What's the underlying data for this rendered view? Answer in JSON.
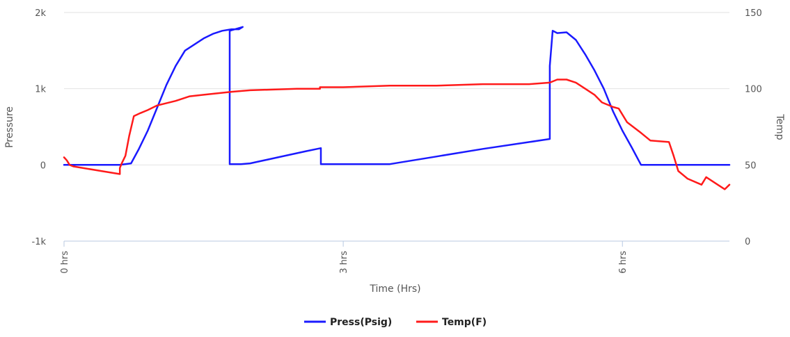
{
  "chart_data": {
    "type": "line",
    "title": "",
    "xlabel": "Time (Hrs)",
    "ylabel_left": "Pressure",
    "ylabel_right": "Temp",
    "xlim": [
      0,
      7.15
    ],
    "ylim_left": [
      -1000,
      2000
    ],
    "ylim_right": [
      0,
      150
    ],
    "x_ticks": [
      0,
      3,
      6
    ],
    "x_tick_labels": [
      "0 hrs",
      "3 hrs",
      "6 hrs"
    ],
    "y_left_ticks": [
      -1000,
      0,
      1000,
      2000
    ],
    "y_left_tick_labels": [
      "-1k",
      "0",
      "1k",
      "2k"
    ],
    "y_right_ticks": [
      0,
      50,
      100,
      150
    ],
    "y_right_tick_labels": [
      "0",
      "50",
      "100",
      "150"
    ],
    "grid": true,
    "legend_position": "bottom-center",
    "series": [
      {
        "name": "Press(Psig)",
        "axis": "left",
        "color": "#1a1aff",
        "x": [
          0,
          0.2,
          0.4,
          0.6,
          0.72,
          0.8,
          0.9,
          1.0,
          1.1,
          1.2,
          1.3,
          1.4,
          1.5,
          1.6,
          1.7,
          1.8,
          1.88,
          1.92,
          1.78,
          1.78,
          1.8,
          1.85,
          1.9,
          2.0,
          2.3,
          2.6,
          2.76,
          2.76,
          2.8,
          3.0,
          3.5,
          4.0,
          4.5,
          5.0,
          5.22,
          5.22,
          5.25,
          5.3,
          5.4,
          5.5,
          5.6,
          5.7,
          5.8,
          5.9,
          6.0,
          6.1,
          6.2,
          6.3,
          6.5,
          6.8,
          7.15
        ],
        "values": [
          0,
          0,
          0,
          0,
          20,
          200,
          450,
          750,
          1050,
          1300,
          1500,
          1580,
          1660,
          1720,
          1760,
          1780,
          1780,
          1810,
          1760,
          10,
          10,
          10,
          10,
          20,
          100,
          180,
          220,
          10,
          10,
          10,
          10,
          110,
          210,
          300,
          340,
          1300,
          1760,
          1730,
          1740,
          1640,
          1450,
          1240,
          1000,
          700,
          450,
          230,
          0,
          0,
          0,
          0,
          0
        ]
      },
      {
        "name": "Temp(F)",
        "axis": "right",
        "color": "#ff1a1a",
        "x": [
          0,
          0.03,
          0.06,
          0.1,
          0.4,
          0.6,
          0.6,
          0.62,
          0.66,
          0.7,
          0.75,
          0.82,
          0.9,
          1.0,
          1.2,
          1.35,
          1.5,
          1.8,
          2.0,
          2.5,
          2.75,
          2.75,
          3.0,
          3.5,
          4.0,
          4.5,
          5.0,
          5.22,
          5.3,
          5.4,
          5.5,
          5.6,
          5.7,
          5.78,
          5.9,
          5.96,
          6.05,
          6.2,
          6.3,
          6.5,
          6.55,
          6.6,
          6.7,
          6.85,
          6.9,
          7.0,
          7.1,
          7.15
        ],
        "values": [
          55,
          53,
          50,
          49,
          46,
          44,
          48,
          51,
          56,
          69,
          82,
          84,
          86,
          89,
          92,
          95,
          96,
          98,
          99,
          100,
          100,
          101,
          101,
          102,
          102,
          103,
          103,
          104,
          106,
          106,
          104,
          100,
          96,
          91,
          88,
          87,
          78,
          71,
          66,
          65,
          56,
          46,
          41,
          37,
          42,
          38,
          34,
          37
        ]
      }
    ]
  }
}
